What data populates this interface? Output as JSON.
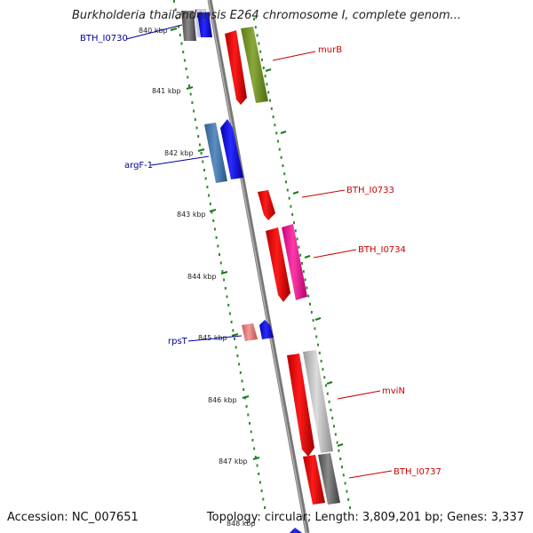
{
  "title": "Burkholderia thailandensis E264 chromosome I, complete genom...",
  "accession": "Accession: NC_007651",
  "topology": "Topology: circular; Length: 3,809,201 bp; Genes: 3,337",
  "ticks": [
    "840 kbp",
    "841 kbp",
    "842 kbp",
    "843 kbp",
    "844 kbp",
    "845 kbp",
    "846 kbp",
    "847 kbp"
  ],
  "clipped_tick": "848 kbp",
  "labels": {
    "BTH_I0730": "BTH_I0730",
    "murB": "murB",
    "argF_1": "argF-1",
    "BTH_I0733": "BTH_I0733",
    "BTH_I0734": "BTH_I0734",
    "rpsT": "rpsT",
    "mviN": "mviN",
    "BTH_I0737": "BTH_I0737"
  },
  "colors": {
    "backbone": "#7a7a7a",
    "dots": "#2e8b2e",
    "forward_label": "#cc0000",
    "reverse_label": "#000099"
  }
}
